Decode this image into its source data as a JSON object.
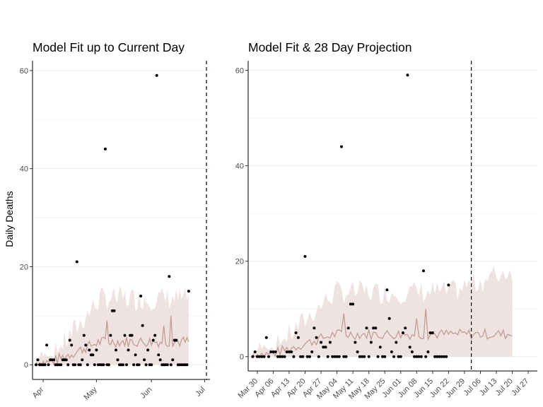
{
  "ylabel": "Daily Deaths",
  "colors": {
    "fit_line": "#c49c94",
    "band": "#efe3e1",
    "points": "#000000",
    "grid": "#ebebeb",
    "vline": "#000000"
  },
  "observed": [
    0,
    1,
    0,
    0,
    0,
    0,
    4,
    0,
    1,
    1,
    1,
    0,
    0,
    0,
    0,
    1,
    1,
    1,
    0,
    5,
    4,
    0,
    0,
    21,
    0,
    0,
    1,
    6,
    4,
    0,
    3,
    2,
    2,
    0,
    3,
    0,
    0,
    0,
    0,
    44,
    0,
    0,
    6,
    11,
    11,
    3,
    1,
    0,
    0,
    0,
    6,
    0,
    3,
    6,
    6,
    0,
    2,
    0,
    0,
    14,
    8,
    1,
    0,
    3,
    0,
    0,
    5,
    6,
    59,
    2,
    1,
    0,
    0,
    0,
    0,
    18,
    0,
    1,
    5,
    5,
    0,
    0,
    0,
    0,
    0,
    0,
    15
  ],
  "projection_days": 28,
  "chart_data": [
    {
      "type": "scatter",
      "title": "Model Fit up to Current Day",
      "ylabel": "Daily Deaths",
      "xlabel": "",
      "x_ticks": [
        "Apr",
        "May",
        "Jun",
        "Jul"
      ],
      "y_ticks": [
        0,
        20,
        40,
        60
      ],
      "ylim": [
        -3,
        62
      ],
      "x_range": [
        "2020-03-26",
        "2020-07-04"
      ],
      "current_day": "2020-07-02",
      "observed_start": "2020-03-28",
      "series": [],
      "grid": "horizontal"
    },
    {
      "type": "scatter",
      "title": "Model Fit & 28 Day Projection",
      "ylabel": "",
      "xlabel": "",
      "x_ticks": [
        "Mar 30",
        "Apr 06",
        "Apr 13",
        "Apr 20",
        "Apr 27",
        "May 04",
        "May 11",
        "May 18",
        "May 25",
        "Jun 01",
        "Jun 08",
        "Jun 15",
        "Jun 22",
        "Jun 29",
        "Jul 06",
        "Jul 13",
        "Jul 20",
        "Jul 27"
      ],
      "y_ticks": [
        0,
        20,
        40,
        60
      ],
      "ylim": [
        -3,
        62
      ],
      "x_range": [
        "2020-03-26",
        "2020-07-31"
      ],
      "current_day": "2020-07-02",
      "observed_start": "2020-03-28",
      "series": [],
      "grid": "horizontal"
    }
  ]
}
